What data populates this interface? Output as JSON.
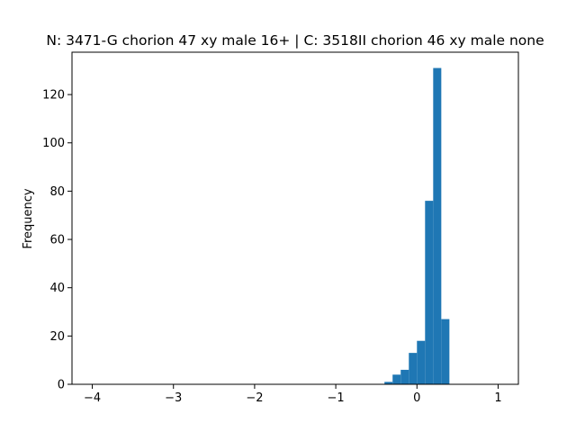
{
  "chart_data": {
    "type": "bar",
    "title": "N: 3471-G chorion 47 xy male 16+ | C: 3518II chorion 46 xy male none",
    "xlabel": "",
    "ylabel": "Frequency",
    "xlim": [
      -4.25,
      1.25
    ],
    "ylim": [
      0,
      137.55
    ],
    "xticks": [
      -4,
      -3,
      -2,
      -1,
      0,
      1
    ],
    "xtick_labels": [
      "−4",
      "−3",
      "−2",
      "−1",
      "0",
      "1"
    ],
    "yticks": [
      0,
      20,
      40,
      60,
      80,
      100,
      120
    ],
    "ytick_labels": [
      "0",
      "20",
      "40",
      "60",
      "80",
      "100",
      "120"
    ],
    "grid": false,
    "bar_color": "#1f77b4",
    "bins": [
      {
        "x0": -0.4,
        "x1": -0.3,
        "count": 1
      },
      {
        "x0": -0.3,
        "x1": -0.2,
        "count": 4
      },
      {
        "x0": -0.2,
        "x1": -0.1,
        "count": 6
      },
      {
        "x0": -0.1,
        "x1": 0.0,
        "count": 13
      },
      {
        "x0": 0.0,
        "x1": 0.1,
        "count": 18
      },
      {
        "x0": 0.1,
        "x1": 0.2,
        "count": 76
      },
      {
        "x0": 0.2,
        "x1": 0.3,
        "count": 131
      },
      {
        "x0": 0.3,
        "x1": 0.4,
        "count": 27
      }
    ]
  }
}
